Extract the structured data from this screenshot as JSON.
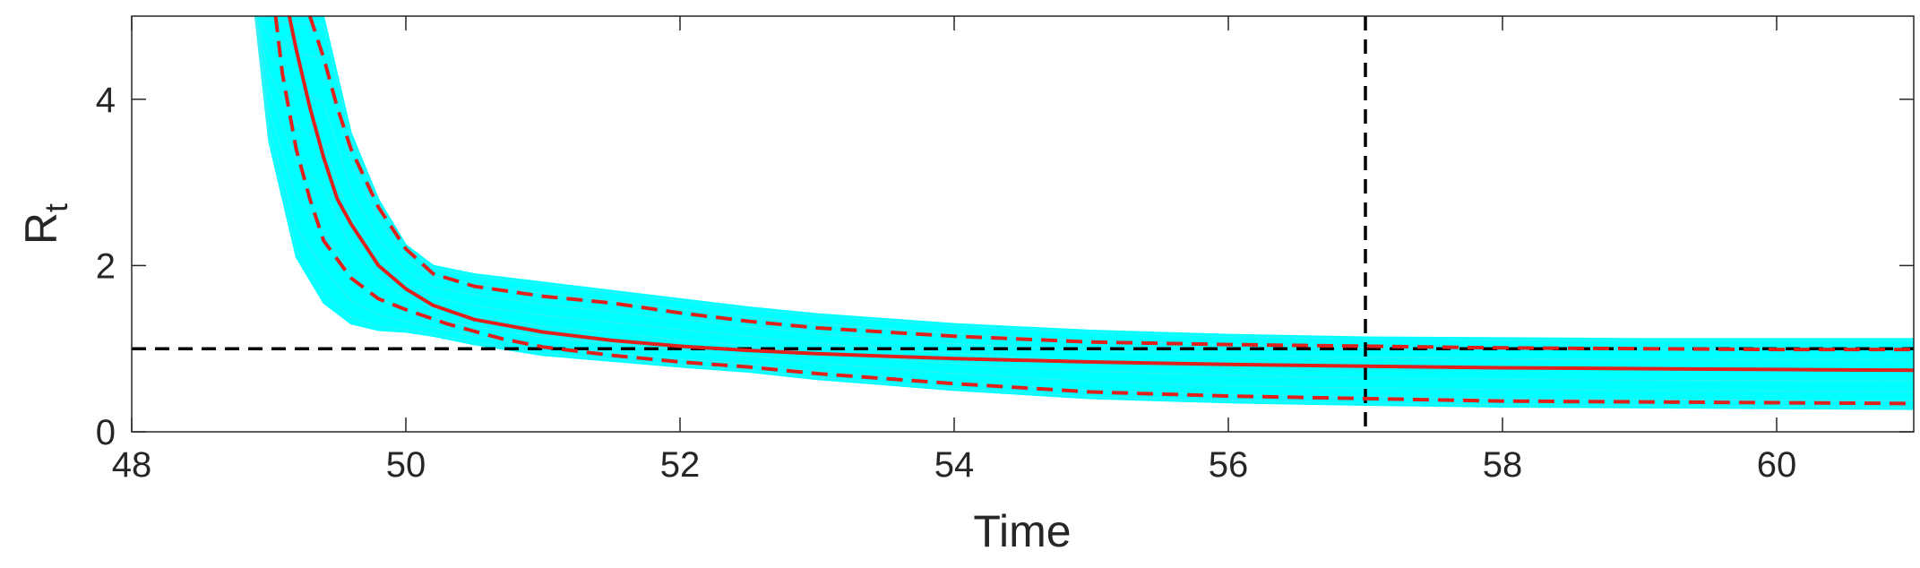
{
  "chart_data": {
    "type": "line",
    "title": "",
    "xlabel": "Time",
    "ylabel": "R",
    "ylabel_subscript": "t",
    "xlim": [
      48,
      61
    ],
    "ylim": [
      0,
      5
    ],
    "xticks": [
      48,
      50,
      52,
      54,
      56,
      58,
      60
    ],
    "yticks": [
      0,
      2,
      4
    ],
    "grid": false,
    "colors": {
      "ensemble": "#00FFFF",
      "median": "#E0201B",
      "reference": "#000000",
      "axis": "#262626"
    },
    "reference_lines": {
      "horizontal_y": 1,
      "vertical_x": 57
    },
    "ensemble_band": {
      "x": [
        48.9,
        49.0,
        49.2,
        49.4,
        49.6,
        49.8,
        50.0,
        50.2,
        50.5,
        51.0,
        51.5,
        52.0,
        52.5,
        53.0,
        54.0,
        55.0,
        56.0,
        57.0,
        58.0,
        59.0,
        60.0,
        61.0
      ],
      "upper": [
        5.0,
        5.0,
        5.0,
        5.0,
        3.6,
        2.8,
        2.25,
        2.0,
        1.9,
        1.8,
        1.7,
        1.6,
        1.5,
        1.42,
        1.3,
        1.22,
        1.17,
        1.14,
        1.13,
        1.12,
        1.12,
        1.12
      ],
      "lower": [
        5.0,
        3.5,
        2.1,
        1.55,
        1.3,
        1.22,
        1.2,
        1.15,
        1.05,
        0.92,
        0.85,
        0.78,
        0.72,
        0.63,
        0.5,
        0.4,
        0.35,
        0.32,
        0.3,
        0.29,
        0.28,
        0.27
      ]
    },
    "series": [
      {
        "style": "solid",
        "x": [
          49.15,
          49.2,
          49.3,
          49.4,
          49.5,
          49.6,
          49.8,
          50.0,
          50.2,
          50.5,
          51.0,
          51.5,
          52.0,
          52.5,
          53.0,
          54.0,
          55.0,
          56.0,
          57.0,
          58.0,
          59.0,
          60.0,
          61.0
        ],
        "y": [
          5.0,
          4.6,
          3.9,
          3.3,
          2.8,
          2.5,
          2.0,
          1.72,
          1.52,
          1.35,
          1.2,
          1.1,
          1.03,
          0.98,
          0.94,
          0.88,
          0.84,
          0.81,
          0.79,
          0.77,
          0.76,
          0.75,
          0.74
        ]
      },
      {
        "style": "dashed",
        "x": [
          49.3,
          49.4,
          49.5,
          49.6,
          49.8,
          50.0,
          50.2,
          50.5,
          51.0,
          51.5,
          52.0,
          52.5,
          53.0,
          54.0,
          55.0,
          56.0,
          57.0,
          58.0,
          59.0,
          60.0,
          61.0
        ],
        "y": [
          5.0,
          4.5,
          3.9,
          3.4,
          2.7,
          2.2,
          1.9,
          1.75,
          1.63,
          1.55,
          1.43,
          1.33,
          1.25,
          1.15,
          1.08,
          1.05,
          1.03,
          1.01,
          1.0,
          0.99,
          0.99
        ]
      },
      {
        "style": "dashed",
        "x": [
          49.05,
          49.1,
          49.2,
          49.3,
          49.4,
          49.6,
          49.8,
          50.0,
          50.3,
          50.7,
          51.0,
          51.5,
          52.0,
          52.5,
          53.0,
          54.0,
          55.0,
          56.0,
          57.0,
          58.0,
          59.0,
          60.0,
          61.0
        ],
        "y": [
          5.0,
          4.3,
          3.4,
          2.8,
          2.3,
          1.85,
          1.6,
          1.47,
          1.3,
          1.12,
          1.02,
          0.92,
          0.84,
          0.78,
          0.7,
          0.58,
          0.48,
          0.43,
          0.4,
          0.37,
          0.36,
          0.35,
          0.34
        ]
      }
    ]
  }
}
